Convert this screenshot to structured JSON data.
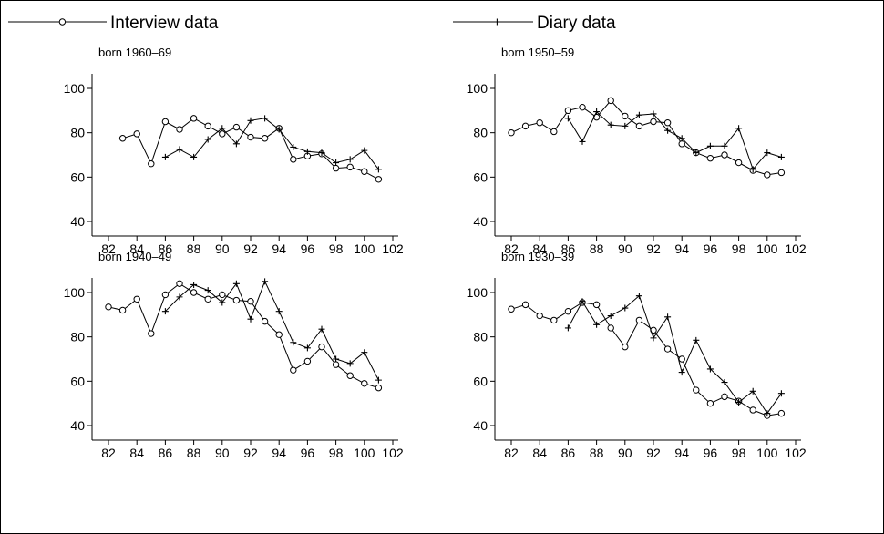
{
  "legend": [
    {
      "name": "Interview data",
      "marker": "circle"
    },
    {
      "name": "Diary data",
      "marker": "plus"
    }
  ],
  "chart_data": [
    {
      "type": "line",
      "title": "born 1960–69",
      "xlabel": "",
      "ylabel": "",
      "xlim": [
        82,
        102
      ],
      "ylim": [
        40,
        100
      ],
      "x_ticks": [
        82,
        84,
        86,
        88,
        90,
        92,
        94,
        96,
        98,
        100,
        102
      ],
      "x_tick_labels": [
        "82",
        "84",
        "86",
        "88",
        "90",
        "92",
        "94",
        "96",
        "98",
        "100",
        "102"
      ],
      "y_ticks": [
        40,
        60,
        80,
        100
      ],
      "y_tick_labels": [
        "40",
        "60",
        "80",
        "100"
      ],
      "grid": false,
      "series": [
        {
          "name": "Interview data",
          "marker": "circle",
          "x": [
            83,
            84,
            85,
            86,
            87,
            88,
            89,
            90,
            91,
            92,
            93,
            94,
            95,
            96,
            97,
            98,
            99,
            100,
            101
          ],
          "y": [
            77.5,
            79.5,
            66,
            85,
            81.5,
            86.5,
            83,
            79.5,
            82.5,
            78,
            77.5,
            82,
            68,
            69.5,
            70.5,
            64,
            64.5,
            62.5,
            59
          ]
        },
        {
          "name": "Diary data",
          "marker": "plus",
          "x": [
            86,
            87,
            88,
            89,
            90,
            91,
            92,
            93,
            94,
            95,
            96,
            97,
            98,
            99,
            100,
            101
          ],
          "y": [
            69,
            72.5,
            69,
            77,
            82,
            75,
            85.5,
            86.5,
            81.5,
            73.5,
            71.5,
            71,
            66.5,
            68,
            72,
            63.5
          ]
        }
      ]
    },
    {
      "type": "line",
      "title": "born 1950–59",
      "xlabel": "",
      "ylabel": "",
      "xlim": [
        82,
        102
      ],
      "ylim": [
        40,
        100
      ],
      "x_ticks": [
        82,
        84,
        86,
        88,
        90,
        92,
        94,
        96,
        98,
        100,
        102
      ],
      "x_tick_labels": [
        "82",
        "84",
        "86",
        "88",
        "90",
        "92",
        "94",
        "96",
        "98",
        "100",
        "102"
      ],
      "y_ticks": [
        40,
        60,
        80,
        100
      ],
      "y_tick_labels": [
        "40",
        "60",
        "80",
        "100"
      ],
      "grid": false,
      "series": [
        {
          "name": "Interview data",
          "marker": "circle",
          "x": [
            82,
            83,
            84,
            85,
            86,
            87,
            88,
            89,
            90,
            91,
            92,
            93,
            94,
            95,
            96,
            97,
            98,
            99,
            100,
            101
          ],
          "y": [
            80,
            83,
            84.5,
            80.5,
            90,
            91.5,
            87,
            94.5,
            87.5,
            83,
            85,
            84.5,
            75,
            71,
            68.5,
            70,
            66.5,
            63,
            61,
            62
          ]
        },
        {
          "name": "Diary data",
          "marker": "plus",
          "x": [
            86,
            87,
            88,
            89,
            90,
            91,
            92,
            93,
            94,
            95,
            96,
            97,
            98,
            99,
            100,
            101
          ],
          "y": [
            86.5,
            76,
            89.5,
            83.5,
            83,
            88,
            88.5,
            81,
            77.5,
            71,
            74,
            74,
            82,
            63.5,
            71,
            69
          ]
        }
      ]
    },
    {
      "type": "line",
      "title": "born 1940–49",
      "xlabel": "",
      "ylabel": "",
      "xlim": [
        82,
        102
      ],
      "ylim": [
        40,
        100
      ],
      "x_ticks": [
        82,
        84,
        86,
        88,
        90,
        92,
        94,
        96,
        98,
        100,
        102
      ],
      "x_tick_labels": [
        "82",
        "84",
        "86",
        "88",
        "90",
        "92",
        "94",
        "96",
        "98",
        "100",
        "102"
      ],
      "y_ticks": [
        40,
        60,
        80,
        100
      ],
      "y_tick_labels": [
        "40",
        "60",
        "80",
        "100"
      ],
      "grid": false,
      "series": [
        {
          "name": "Interview data",
          "marker": "circle",
          "x": [
            82,
            83,
            84,
            85,
            86,
            87,
            88,
            89,
            90,
            91,
            92,
            93,
            94,
            95,
            96,
            97,
            98,
            99,
            100,
            101
          ],
          "y": [
            93.5,
            92,
            97,
            81.5,
            99,
            104,
            100,
            97,
            99,
            96.5,
            96,
            87,
            81,
            65,
            69,
            75.5,
            67.5,
            62.5,
            59,
            57
          ]
        },
        {
          "name": "Diary data",
          "marker": "plus",
          "x": [
            86,
            87,
            88,
            89,
            90,
            91,
            92,
            93,
            94,
            95,
            96,
            97,
            98,
            99,
            100,
            101
          ],
          "y": [
            91.5,
            98,
            103.5,
            101,
            95.5,
            104,
            88,
            105,
            91.5,
            77.5,
            75,
            83.5,
            70,
            68,
            73,
            60.5
          ]
        }
      ]
    },
    {
      "type": "line",
      "title": "born 1930–39",
      "xlabel": "",
      "ylabel": "",
      "xlim": [
        82,
        102
      ],
      "ylim": [
        40,
        100
      ],
      "x_ticks": [
        82,
        84,
        86,
        88,
        90,
        92,
        94,
        96,
        98,
        100,
        102
      ],
      "x_tick_labels": [
        "82",
        "84",
        "86",
        "88",
        "90",
        "92",
        "94",
        "96",
        "98",
        "100",
        "102"
      ],
      "y_ticks": [
        40,
        60,
        80,
        100
      ],
      "y_tick_labels": [
        "40",
        "60",
        "80",
        "100"
      ],
      "grid": false,
      "series": [
        {
          "name": "Interview data",
          "marker": "circle",
          "x": [
            82,
            83,
            84,
            85,
            86,
            87,
            88,
            89,
            90,
            91,
            92,
            93,
            94,
            95,
            96,
            97,
            98,
            99,
            100,
            101
          ],
          "y": [
            92.5,
            94.5,
            89.5,
            87.5,
            91.5,
            95.5,
            94.5,
            84,
            75.5,
            87.5,
            83,
            74.5,
            70,
            56,
            50,
            53,
            51,
            47,
            44.5,
            45.5
          ]
        },
        {
          "name": "Diary data",
          "marker": "plus",
          "x": [
            86,
            87,
            88,
            89,
            90,
            91,
            92,
            93,
            94,
            95,
            96,
            97,
            98,
            99,
            100,
            101
          ],
          "y": [
            84,
            96,
            85.5,
            89.5,
            93,
            98.5,
            79.5,
            89,
            64,
            78.5,
            65.5,
            59.5,
            50.5,
            55.5,
            45.5,
            54.5
          ]
        }
      ]
    }
  ]
}
